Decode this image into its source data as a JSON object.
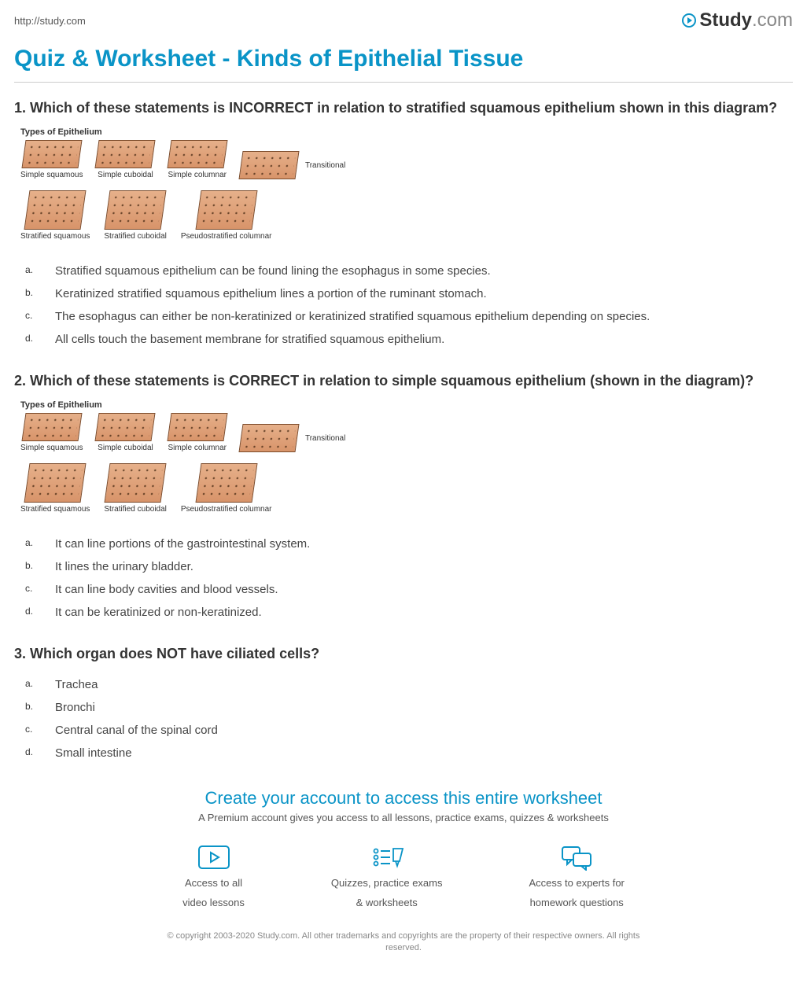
{
  "url": "http://study.com",
  "logo": {
    "brand": "Study",
    "suffix": ".com"
  },
  "page_title": "Quiz & Worksheet - Kinds of Epithelial Tissue",
  "colors": {
    "accent": "#0a94c7",
    "text": "#333333",
    "muted": "#888888",
    "rule": "#cccccc",
    "tissue_fill_top": "#e6b08a",
    "tissue_fill_bottom": "#d8946a",
    "tissue_border": "#7a4a2a"
  },
  "diagram": {
    "title": "Types of Epithelium",
    "top_row": [
      "Simple squamous",
      "Simple cuboidal",
      "Simple columnar"
    ],
    "side_label": "Transitional",
    "bottom_row": [
      "Stratified squamous",
      "Stratified cuboidal",
      "Pseudostratified columnar"
    ]
  },
  "questions": [
    {
      "number": "1.",
      "text": "Which of these statements is INCORRECT in relation to stratified squamous epithelium shown in this diagram?",
      "has_diagram": true,
      "answers": [
        "Stratified squamous epithelium can be found lining the esophagus in some species.",
        "Keratinized stratified squamous epithelium lines a portion of the ruminant stomach.",
        "The esophagus can either be non-keratinized or keratinized stratified squamous epithelium depending on species.",
        "All cells touch the basement membrane for stratified squamous epithelium."
      ]
    },
    {
      "number": "2.",
      "text": "Which of these statements is CORRECT in relation to simple squamous epithelium (shown in the diagram)?",
      "has_diagram": true,
      "answers": [
        "It can line portions of the gastrointestinal system.",
        "It lines the urinary bladder.",
        "It can line body cavities and blood vessels.",
        "It can be keratinized or non-keratinized."
      ]
    },
    {
      "number": "3.",
      "text": "Which organ does NOT have ciliated cells?",
      "has_diagram": false,
      "answers": [
        "Trachea",
        "Bronchi",
        "Central canal of the spinal cord",
        "Small intestine"
      ]
    }
  ],
  "letters": [
    "a.",
    "b.",
    "c.",
    "d."
  ],
  "cta": {
    "title": "Create your account to access this entire worksheet",
    "subtitle": "A Premium account gives you access to all lessons, practice exams, quizzes & worksheets",
    "features": [
      {
        "icon": "video",
        "line1": "Access to all",
        "line2": "video lessons"
      },
      {
        "icon": "quiz",
        "line1": "Quizzes, practice exams",
        "line2": "& worksheets"
      },
      {
        "icon": "chat",
        "line1": "Access to experts for",
        "line2": "homework questions"
      }
    ]
  },
  "copyright": "© copyright 2003-2020 Study.com. All other trademarks and copyrights are the property of their respective owners. All rights reserved."
}
